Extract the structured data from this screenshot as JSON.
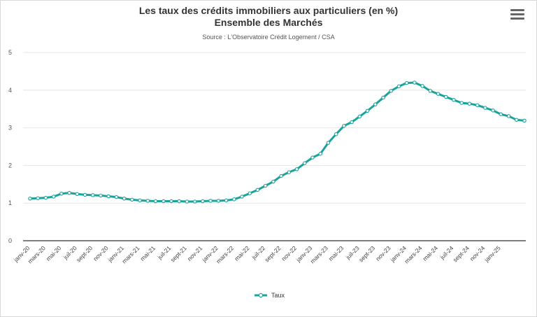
{
  "chart_data": {
    "type": "line",
    "title_line1": "Les taux des crédits immobiliers aux particuliers (en %)",
    "title_line2": "Ensemble des Marchés",
    "subtitle": "Source : L'Observatoire Crédit Logement / CSA",
    "xlabel": "",
    "ylabel": "",
    "ylim": [
      0,
      5
    ],
    "yticks": [
      0,
      1,
      2,
      3,
      4,
      5
    ],
    "grid": true,
    "legend_position": "bottom-center",
    "color": "#1aa39a",
    "x_tick_labels": [
      "janv-20",
      "mars-20",
      "mai-20",
      "juil-20",
      "sept-20",
      "nov-20",
      "janv-21",
      "mars-21",
      "mai-21",
      "juil-21",
      "sept-21",
      "nov-21",
      "janv-22",
      "mars-22",
      "mai-22",
      "juil-22",
      "sept-22",
      "nov-22",
      "janv-23",
      "mars-23",
      "mai-23",
      "juil-23",
      "sept-23",
      "nov-23",
      "janv-24",
      "mars-24",
      "mai-24",
      "juil-24",
      "sept-24",
      "nov-24",
      "janv-25"
    ],
    "series": [
      {
        "name": "Taux",
        "values": [
          1.12,
          1.13,
          1.14,
          1.17,
          1.25,
          1.27,
          1.24,
          1.22,
          1.21,
          1.2,
          1.18,
          1.16,
          1.12,
          1.09,
          1.07,
          1.06,
          1.05,
          1.05,
          1.05,
          1.05,
          1.04,
          1.04,
          1.05,
          1.06,
          1.06,
          1.07,
          1.1,
          1.17,
          1.26,
          1.35,
          1.46,
          1.57,
          1.72,
          1.82,
          1.9,
          2.06,
          2.21,
          2.31,
          2.6,
          2.83,
          3.05,
          3.15,
          3.3,
          3.45,
          3.62,
          3.8,
          3.98,
          4.1,
          4.19,
          4.2,
          4.11,
          3.98,
          3.9,
          3.82,
          3.74,
          3.66,
          3.64,
          3.6,
          3.53,
          3.46,
          3.36,
          3.31,
          3.21,
          3.19
        ]
      }
    ]
  },
  "menu": {
    "icon": "hamburger-menu-icon"
  }
}
